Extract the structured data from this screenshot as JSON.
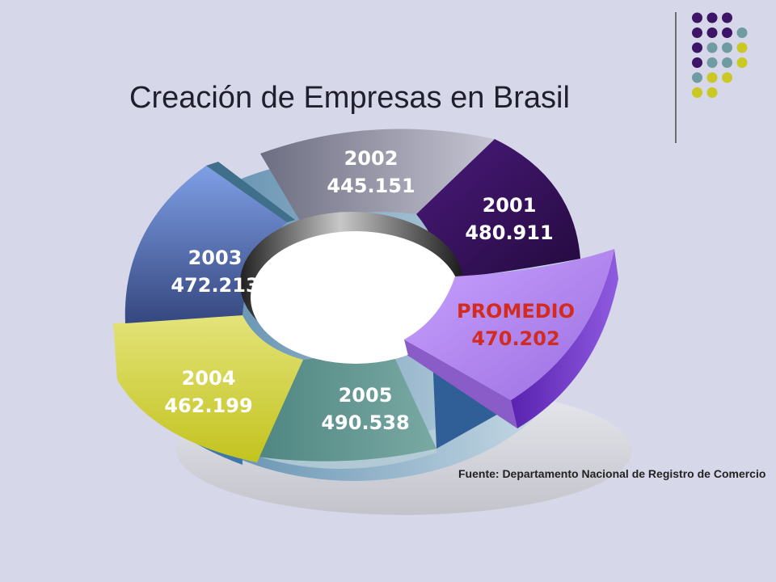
{
  "title": "Creación de Empresas en Brasil",
  "source": "Fuente: Departamento Nacional de Registro de Comercio",
  "colors": {
    "background": "#d7d7ea",
    "purple": "#3d1566",
    "teal": "#6f9ca3",
    "yellow": "#c9c824",
    "avg_label": "#d22b20"
  },
  "chart_data": {
    "type": "pie",
    "style": "3d-donut",
    "title": "Creación de Empresas en Brasil",
    "slices": [
      {
        "label": "2001",
        "value": 480911,
        "value_text": "480.911",
        "color": "#3d1566"
      },
      {
        "label": "PROMEDIO",
        "value": 470202,
        "value_text": "470.202",
        "color": "#b98cf2",
        "exploded": true
      },
      {
        "label": "2005",
        "value": 490538,
        "value_text": "490.538",
        "color": "#5f9592"
      },
      {
        "label": "2004",
        "value": 462199,
        "value_text": "462.199",
        "color": "#d4d42e"
      },
      {
        "label": "2003",
        "value": 472213,
        "value_text": "472.213",
        "color": "#4a5ca8"
      },
      {
        "label": "2002",
        "value": 445151,
        "value_text": "445.151",
        "color": "#8e8ea0"
      }
    ]
  }
}
